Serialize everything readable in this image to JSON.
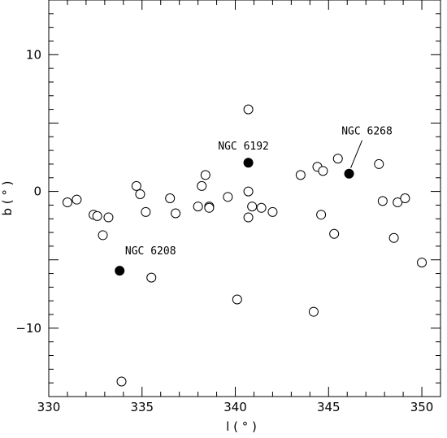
{
  "chart_data": {
    "type": "scatter",
    "xlabel": "l ( ° )",
    "ylabel": "b ( ° )",
    "xlim": [
      330,
      351
    ],
    "ylim": [
      -15,
      14
    ],
    "x_ticks_labeled": [
      330,
      335,
      340,
      345,
      350
    ],
    "y_ticks_labeled": [
      -10,
      0,
      10
    ],
    "grid": false,
    "series": [
      {
        "marker": "open-circle",
        "points": [
          [
            331.0,
            -0.8
          ],
          [
            331.5,
            -0.6
          ],
          [
            332.4,
            -1.7
          ],
          [
            332.6,
            -1.8
          ],
          [
            333.2,
            -1.9
          ],
          [
            332.9,
            -3.2
          ],
          [
            334.7,
            0.4
          ],
          [
            334.9,
            -0.2
          ],
          [
            335.2,
            -1.5
          ],
          [
            335.5,
            -6.3
          ],
          [
            336.5,
            -0.5
          ],
          [
            336.8,
            -1.6
          ],
          [
            338.0,
            -1.1
          ],
          [
            338.2,
            0.4
          ],
          [
            338.4,
            1.2
          ],
          [
            338.6,
            -1.1
          ],
          [
            338.6,
            -1.2
          ],
          [
            339.6,
            -0.4
          ],
          [
            340.7,
            6.0
          ],
          [
            340.7,
            0.0
          ],
          [
            340.7,
            -1.9
          ],
          [
            340.9,
            -1.1
          ],
          [
            341.4,
            -1.2
          ],
          [
            342.0,
            -1.5
          ],
          [
            340.1,
            -7.9
          ],
          [
            343.5,
            1.2
          ],
          [
            344.4,
            1.8
          ],
          [
            344.7,
            1.5
          ],
          [
            344.6,
            -1.7
          ],
          [
            345.5,
            2.4
          ],
          [
            345.3,
            -3.1
          ],
          [
            344.2,
            -8.8
          ],
          [
            347.7,
            2.0
          ],
          [
            347.9,
            -0.7
          ],
          [
            348.7,
            -0.8
          ],
          [
            349.1,
            -0.5
          ],
          [
            348.5,
            -3.4
          ],
          [
            350.0,
            -5.2
          ],
          [
            333.9,
            -13.9
          ]
        ]
      },
      {
        "marker": "filled-circle",
        "points": [
          [
            340.7,
            2.1
          ],
          [
            346.1,
            1.3
          ],
          [
            333.8,
            -5.8
          ]
        ]
      }
    ],
    "annotations": [
      {
        "text": "NGC 6192",
        "x": 340.7,
        "y": 2.1
      },
      {
        "text": "NGC 6268",
        "x": 346.1,
        "y": 1.3
      },
      {
        "text": "NGC 6208",
        "x": 333.8,
        "y": -5.8
      }
    ]
  }
}
